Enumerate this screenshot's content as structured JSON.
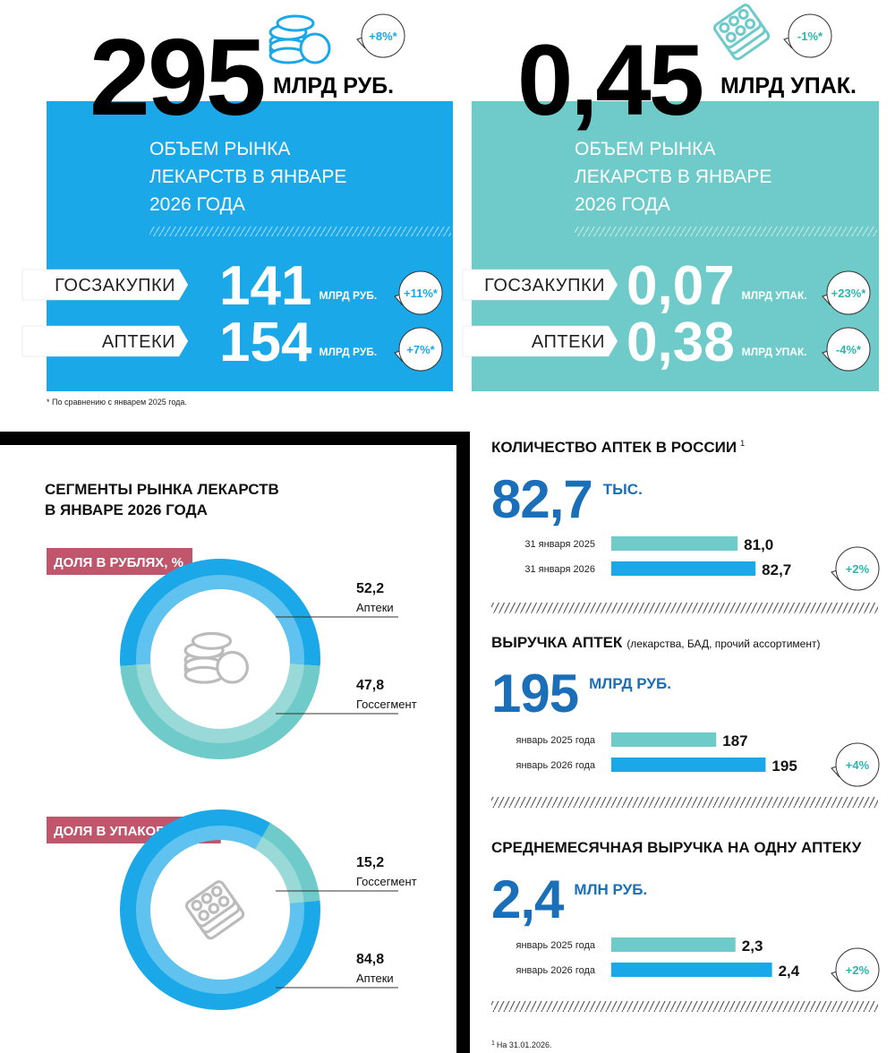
{
  "panels": [
    {
      "value": "295",
      "unit": "МЛРД РУБ.",
      "change": "+8%*",
      "title_lines": [
        "ОБЪЕМ РЫНКА",
        "ЛЕКАРСТВ В ЯНВАРЕ",
        "2026 ГОДА"
      ],
      "rows": [
        {
          "label": "ГОСЗАКУПКИ",
          "value": "141",
          "unit": "МЛРД РУБ.",
          "change": "+11%*"
        },
        {
          "label": "АПТЕКИ",
          "value": "154",
          "unit": "МЛРД РУБ.",
          "change": "+7%*"
        }
      ]
    },
    {
      "value": "0,45",
      "unit": "МЛРД УПАК.",
      "change": "-1%*",
      "title_lines": [
        "ОБЪЕМ РЫНКА",
        "ЛЕКАРСТВ В ЯНВАРЕ",
        "2026 ГОДА"
      ],
      "rows": [
        {
          "label": "ГОСЗАКУПКИ",
          "value": "0,07",
          "unit": "МЛРД УПАК.",
          "change": "+23%*"
        },
        {
          "label": "АПТЕКИ",
          "value": "0,38",
          "unit": "МЛРД УПАК.",
          "change": "-4%*"
        }
      ]
    }
  ],
  "footnote": "* По сравнению с январем 2025 года.",
  "segments_title": [
    "СЕГМЕНТЫ РЫНКА ЛЕКАРСТВ",
    "В ЯНВАРЕ 2026 ГОДА"
  ],
  "chart_data": [
    {
      "type": "pie",
      "title": "ДОЛЯ В РУБЛЯХ, %",
      "categories": [
        "Аптеки",
        "Госсегмент"
      ],
      "values": [
        52.2,
        47.8
      ],
      "value_labels": [
        "52,2",
        "47,8"
      ],
      "colors": [
        "#1aa8e8",
        "#6ecbc9"
      ],
      "startangle": 266
    },
    {
      "type": "pie",
      "title": "ДОЛЯ В УПАКОВКАХ, %",
      "categories": [
        "Госсегмент",
        "Аптеки"
      ],
      "values": [
        15.2,
        84.8
      ],
      "value_labels": [
        "15,2",
        "84,8"
      ],
      "colors": [
        "#6ecbc9",
        "#1aa8e8"
      ],
      "startangle": 30
    },
    {
      "type": "bar",
      "title": "КОЛИЧЕСТВО АПТЕК В РОССИИ",
      "title_note": "1",
      "headline": "82,7",
      "headline_unit": "ТЫС.",
      "categories": [
        "31 января 2025",
        "31 января 2026"
      ],
      "values": [
        81.0,
        82.7
      ],
      "value_labels": [
        "81,0",
        "82,7"
      ],
      "colors": [
        "#6ecbc9",
        "#1aa8e8"
      ],
      "xlim": [
        69,
        86
      ],
      "change": "+2%"
    },
    {
      "type": "bar",
      "title": "ВЫРУЧКА АПТЕК",
      "subtitle": "(лекарства, БАД, прочий ассортимент)",
      "headline": "195",
      "headline_unit": "МЛРД РУБ.",
      "categories": [
        "январь 2025 года",
        "январь 2026 года"
      ],
      "values": [
        187,
        195
      ],
      "colors": [
        "#6ecbc9",
        "#1aa8e8"
      ],
      "xlim": [
        170,
        199
      ],
      "change": "+4%"
    },
    {
      "type": "bar",
      "title": "СРЕДНЕМЕСЯЧНАЯ ВЫРУЧКА НА ОДНУ АПТЕКУ",
      "headline": "2,4",
      "headline_unit": "МЛН РУБ.",
      "categories": [
        "январь 2025 года",
        "январь 2026 года"
      ],
      "values": [
        2.3,
        2.4
      ],
      "value_labels": [
        "2,3",
        "2,4"
      ],
      "colors": [
        "#6ecbc9",
        "#1aa8e8"
      ],
      "xlim": [
        1.96,
        2.45
      ],
      "change": "+2%"
    }
  ],
  "source_note": {
    "mark": "1",
    "text": "На 31.01.2026."
  }
}
